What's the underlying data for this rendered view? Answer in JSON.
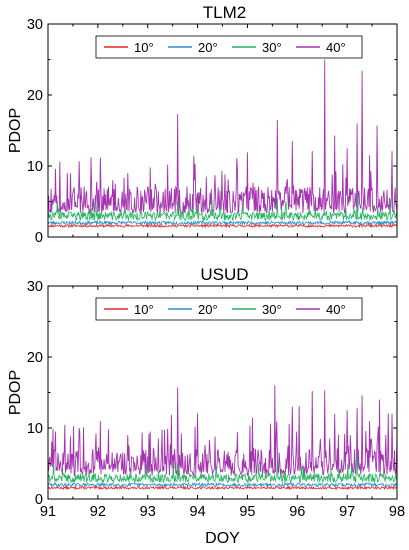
{
  "chart_data": [
    {
      "type": "line",
      "title": "TLM2",
      "xlabel": "",
      "ylabel": "PDOP",
      "xlim": [
        91,
        98
      ],
      "ylim": [
        0,
        30
      ],
      "xticks": [
        "91",
        "92",
        "93",
        "94",
        "95",
        "96",
        "97",
        "98"
      ],
      "yticks": [
        "0",
        "10",
        "20",
        "30"
      ],
      "legend_position": "top",
      "series": [
        {
          "name": "10°",
          "color": "#e8262b",
          "baseline": 1.5,
          "noise": 0.25,
          "peaks": [],
          "seed": 11
        },
        {
          "name": "20°",
          "color": "#2a8fc9",
          "baseline": 1.9,
          "noise": 0.35,
          "peaks": [],
          "seed": 23
        },
        {
          "name": "30°",
          "color": "#22b45e",
          "baseline": 2.7,
          "noise": 0.9,
          "peaks": [
            [
              93.6,
              5.0
            ],
            [
              95.6,
              5.5
            ],
            [
              97.2,
              6.0
            ]
          ],
          "seed": 37
        },
        {
          "name": "40°",
          "color": "#a533b0",
          "baseline": 4.5,
          "noise": 2.2,
          "peaks": [
            [
              91.15,
              9.6
            ],
            [
              91.45,
              9.0
            ],
            [
              92.05,
              11.2
            ],
            [
              92.6,
              9.0
            ],
            [
              93.05,
              9.8
            ],
            [
              93.4,
              10.2
            ],
            [
              93.6,
              17.3
            ],
            [
              93.95,
              10.3
            ],
            [
              94.35,
              8.7
            ],
            [
              94.8,
              9.5
            ],
            [
              95.6,
              16.5
            ],
            [
              95.9,
              13.5
            ],
            [
              96.3,
              12.1
            ],
            [
              96.55,
              25.0
            ],
            [
              96.75,
              14.3
            ],
            [
              97.0,
              12.5
            ],
            [
              97.2,
              16.0
            ],
            [
              97.3,
              23.4
            ],
            [
              97.45,
              11.5
            ],
            [
              97.6,
              15.7
            ],
            [
              97.9,
              12.1
            ]
          ],
          "seed": 51
        }
      ]
    },
    {
      "type": "line",
      "title": "USUD",
      "xlabel": "DOY",
      "ylabel": "PDOP",
      "xlim": [
        91,
        98
      ],
      "ylim": [
        0,
        30
      ],
      "xticks": [
        "91",
        "92",
        "93",
        "94",
        "95",
        "96",
        "97",
        "98"
      ],
      "yticks": [
        "0",
        "10",
        "20",
        "30"
      ],
      "legend_position": "top",
      "series": [
        {
          "name": "10°",
          "color": "#e8262b",
          "baseline": 1.5,
          "noise": 0.25,
          "peaks": [],
          "seed": 13
        },
        {
          "name": "20°",
          "color": "#2a8fc9",
          "baseline": 1.9,
          "noise": 0.35,
          "peaks": [],
          "seed": 29
        },
        {
          "name": "30°",
          "color": "#22b45e",
          "baseline": 2.7,
          "noise": 0.9,
          "peaks": [
            [
              93.6,
              5.0
            ],
            [
              95.6,
              5.5
            ],
            [
              97.2,
              6.0
            ]
          ],
          "seed": 41
        },
        {
          "name": "40°",
          "color": "#a533b0",
          "baseline": 4.5,
          "noise": 2.2,
          "peaks": [
            [
              91.15,
              9.5
            ],
            [
              91.45,
              8.8
            ],
            [
              92.05,
              11.0
            ],
            [
              92.6,
              9.0
            ],
            [
              93.05,
              9.5
            ],
            [
              93.4,
              9.9
            ],
            [
              93.6,
              15.7
            ],
            [
              93.95,
              10.2
            ],
            [
              94.35,
              8.8
            ],
            [
              94.8,
              9.4
            ],
            [
              95.55,
              16.0
            ],
            [
              95.9,
              13.0
            ],
            [
              96.3,
              15.2
            ],
            [
              96.55,
              15.3
            ],
            [
              96.75,
              12.0
            ],
            [
              97.0,
              12.5
            ],
            [
              97.2,
              12.8
            ],
            [
              97.3,
              14.6
            ],
            [
              97.45,
              11.0
            ],
            [
              97.65,
              14.0
            ],
            [
              97.9,
              12.0
            ]
          ],
          "seed": 59
        }
      ]
    }
  ]
}
